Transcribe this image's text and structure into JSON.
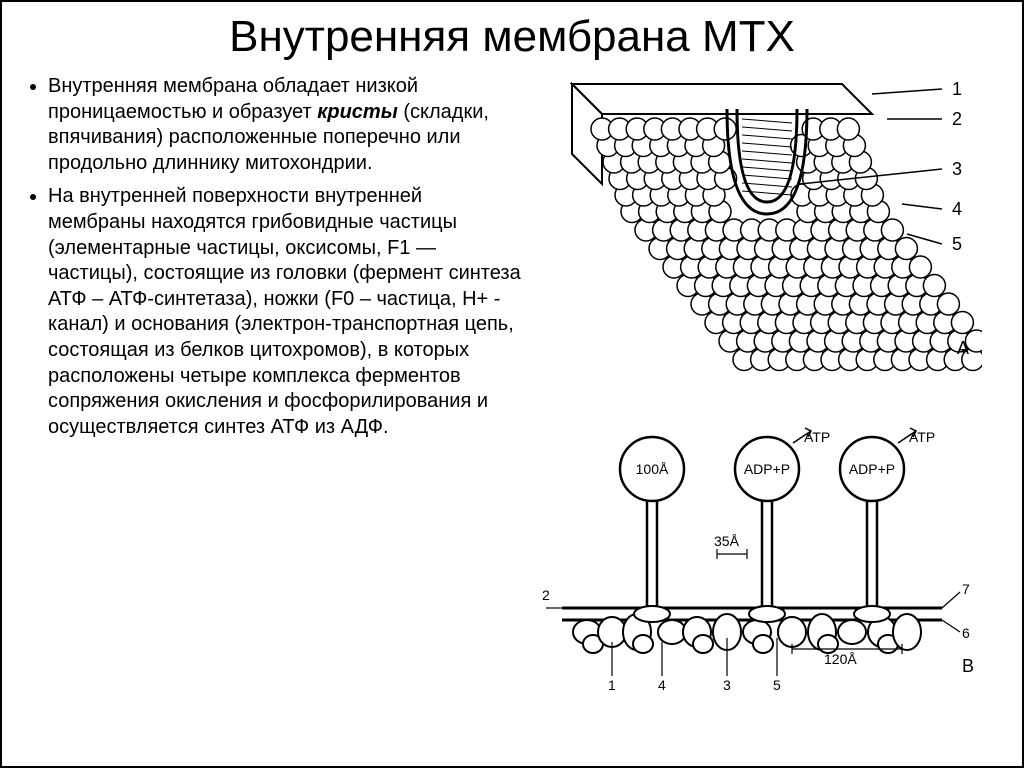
{
  "title": "Внутренняя мембрана МТХ",
  "bullets": [
    {
      "pre": "Внутренняя мембрана обладает низкой проницаемостью и образует ",
      "em": "кристы",
      "post": " (складки, впячивания) расположенные поперечно или продольно длиннику митохондрии."
    },
    {
      "pre": "На внутренней поверхности внутренней мембраны находятся грибовидные частицы (элементарные частицы, оксисомы, F1 — частицы), состоящие из головки (фермент синтеза АТФ – АТФ-синтетаза), ножки (F0 – частица, H+ - канал) и основания (электрон-транспортная цепь, состоящая из белков цитохромов), в которых расположены четыре комплекса ферментов сопряжения окисления и фосфорилирования  и осуществляется синтез АТФ из АДФ.",
      "em": "",
      "post": ""
    }
  ],
  "figA": {
    "labels": [
      "1",
      "2",
      "3",
      "4",
      "5"
    ],
    "letter": "А",
    "sphere_rows": 14,
    "sphere_cols": 15,
    "sphere_r": 11,
    "stroke": "#000000",
    "fill": "#ffffff"
  },
  "figB": {
    "labels_top": [
      "ATP",
      "ATP"
    ],
    "labels_in": [
      "100Å",
      "ADP+P",
      "ADP+P"
    ],
    "dim35": "35Å",
    "dim120": "120Å",
    "nums": [
      "1",
      "2",
      "3",
      "4",
      "5",
      "6",
      "7"
    ],
    "letter": "В",
    "head_r": 32,
    "stalk_w": 10,
    "stroke": "#000000",
    "fill": "#ffffff"
  },
  "style": {
    "title_fontsize": 44,
    "bullet_fontsize": 20,
    "bg": "#ffffff",
    "text": "#000000"
  }
}
